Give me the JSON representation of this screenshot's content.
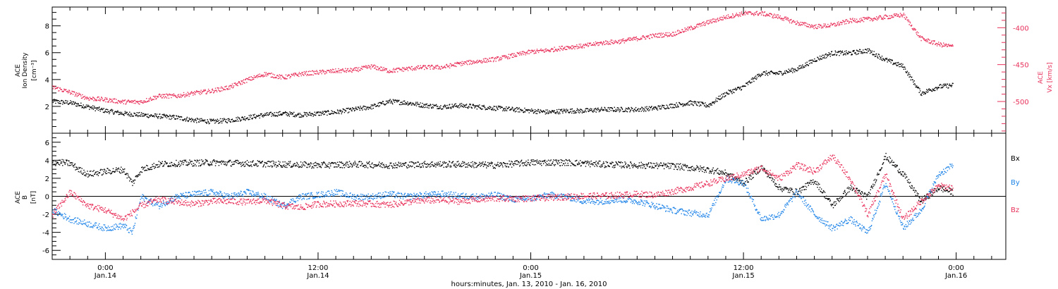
{
  "colors": {
    "black": "#000000",
    "pink": "#e8305a",
    "blue": "#1f84e8"
  },
  "xaxis": {
    "label": "hours:minutes, Jan. 13, 2010 - Jan. 16, 2010",
    "ticks": [
      {
        "hour": 0,
        "time": "0:00",
        "date": "Jan.14"
      },
      {
        "hour": 12,
        "time": "12:00",
        "date": "Jan.14"
      },
      {
        "hour": 24,
        "time": "0:00",
        "date": "Jan.15"
      },
      {
        "hour": 36,
        "time": "12:00",
        "date": "Jan.15"
      },
      {
        "hour": 48,
        "time": "0:00",
        "date": "Jan.16"
      }
    ]
  },
  "chart_data": [
    {
      "type": "scatter",
      "panel": "top",
      "ylabel_left": [
        "ACE",
        "Ion Density",
        "[cm⁻³]"
      ],
      "ylabel_right": [
        "ACE",
        "Vx [km/s]"
      ],
      "xrange_hours_from_jan14_0000": [
        -3.0,
        50.8
      ],
      "ylim_left": [
        0,
        9.4
      ],
      "yticks_left": [
        "2",
        "4",
        "6",
        "8"
      ],
      "ylim_right": [
        -543,
        -372
      ],
      "yticks_right": [
        "-400",
        "-450",
        "-500"
      ],
      "series": [
        {
          "axis": "left",
          "color": "black",
          "points": [
            [
              -3.0,
              2.4
            ],
            [
              -2,
              2.3
            ],
            [
              -1,
              2.0
            ],
            [
              0,
              1.7
            ],
            [
              1,
              1.5
            ],
            [
              2,
              1.4
            ],
            [
              3,
              1.3
            ],
            [
              4,
              1.2
            ],
            [
              5,
              1.0
            ],
            [
              6,
              0.9
            ],
            [
              7,
              1.0
            ],
            [
              8,
              1.2
            ],
            [
              9,
              1.4
            ],
            [
              10,
              1.5
            ],
            [
              11,
              1.4
            ],
            [
              12,
              1.5
            ],
            [
              13,
              1.6
            ],
            [
              14,
              1.8
            ],
            [
              15,
              2.0
            ],
            [
              16,
              2.4
            ],
            [
              17,
              2.3
            ],
            [
              18,
              2.1
            ],
            [
              19,
              2.0
            ],
            [
              20,
              2.1
            ],
            [
              21,
              2.0
            ],
            [
              22,
              1.9
            ],
            [
              23,
              1.8
            ],
            [
              24,
              1.7
            ],
            [
              25,
              1.6
            ],
            [
              26,
              1.7
            ],
            [
              27,
              1.7
            ],
            [
              28,
              1.8
            ],
            [
              29,
              1.8
            ],
            [
              30,
              1.8
            ],
            [
              31,
              1.9
            ],
            [
              32,
              2.1
            ],
            [
              33,
              2.3
            ],
            [
              34,
              2.1
            ],
            [
              35,
              3.0
            ],
            [
              36,
              3.5
            ],
            [
              37,
              4.5
            ],
            [
              38,
              4.5
            ],
            [
              39,
              4.8
            ],
            [
              40,
              5.5
            ],
            [
              41,
              6.0
            ],
            [
              42,
              6.0
            ],
            [
              43,
              6.2
            ],
            [
              44,
              5.5
            ],
            [
              45,
              5.0
            ],
            [
              46,
              3.0
            ],
            [
              47,
              3.5
            ],
            [
              47.8,
              3.6
            ]
          ]
        },
        {
          "axis": "right",
          "color": "pink",
          "points": [
            [
              -3.0,
              -480
            ],
            [
              -2,
              -487
            ],
            [
              -1,
              -495
            ],
            [
              0,
              -497
            ],
            [
              1,
              -500
            ],
            [
              2,
              -500
            ],
            [
              3,
              -492
            ],
            [
              4,
              -492
            ],
            [
              5,
              -488
            ],
            [
              6,
              -485
            ],
            [
              7,
              -480
            ],
            [
              8,
              -470
            ],
            [
              9,
              -462
            ],
            [
              10,
              -467
            ],
            [
              11,
              -462
            ],
            [
              12,
              -460
            ],
            [
              13,
              -458
            ],
            [
              14,
              -457
            ],
            [
              15,
              -452
            ],
            [
              16,
              -458
            ],
            [
              17,
              -455
            ],
            [
              18,
              -453
            ],
            [
              19,
              -453
            ],
            [
              20,
              -448
            ],
            [
              21,
              -445
            ],
            [
              22,
              -442
            ],
            [
              23,
              -437
            ],
            [
              24,
              -432
            ],
            [
              25,
              -430
            ],
            [
              26,
              -426
            ],
            [
              27,
              -424
            ],
            [
              28,
              -420
            ],
            [
              29,
              -418
            ],
            [
              30,
              -414
            ],
            [
              31,
              -410
            ],
            [
              32,
              -408
            ],
            [
              33,
              -400
            ],
            [
              34,
              -392
            ],
            [
              35,
              -385
            ],
            [
              36,
              -380
            ],
            [
              37,
              -380
            ],
            [
              38,
              -385
            ],
            [
              39,
              -393
            ],
            [
              40,
              -398
            ],
            [
              41,
              -396
            ],
            [
              42,
              -390
            ],
            [
              43,
              -388
            ],
            [
              44,
              -385
            ],
            [
              45,
              -382
            ],
            [
              46,
              -414
            ],
            [
              47,
              -422
            ],
            [
              47.8,
              -425
            ]
          ]
        }
      ]
    },
    {
      "type": "scatter",
      "panel": "bottom",
      "ylabel_left": [
        "ACE",
        "B",
        "[nT]"
      ],
      "xrange_hours_from_jan14_0000": [
        -3.0,
        50.8
      ],
      "ylim": [
        -7,
        7
      ],
      "yticks": [
        "-6",
        "-4",
        "-2",
        "0",
        "2",
        "4",
        "6"
      ],
      "zero_line": true,
      "legend": [
        "Bx",
        "By",
        "Bz"
      ],
      "legend_placement": "right",
      "series": [
        {
          "name": "Bx",
          "color": "black",
          "points": [
            [
              -3.0,
              3.8
            ],
            [
              -2.5,
              3.8
            ],
            [
              -2,
              3.7
            ],
            [
              -1.5,
              3.0
            ],
            [
              -1,
              2.5
            ],
            [
              0,
              2.8
            ],
            [
              1,
              3.0
            ],
            [
              1.5,
              1.5
            ],
            [
              2,
              3.0
            ],
            [
              3,
              3.6
            ],
            [
              4,
              3.7
            ],
            [
              6,
              3.8
            ],
            [
              8,
              3.7
            ],
            [
              10,
              3.6
            ],
            [
              12,
              3.5
            ],
            [
              14,
              3.6
            ],
            [
              16,
              3.5
            ],
            [
              18,
              3.6
            ],
            [
              20,
              3.6
            ],
            [
              22,
              3.5
            ],
            [
              24,
              3.8
            ],
            [
              26,
              3.8
            ],
            [
              28,
              3.6
            ],
            [
              30,
              3.5
            ],
            [
              32,
              3.4
            ],
            [
              34,
              3.0
            ],
            [
              35,
              2.6
            ],
            [
              36,
              1.5
            ],
            [
              37,
              3.3
            ],
            [
              38,
              1.0
            ],
            [
              39,
              0.5
            ],
            [
              40,
              1.8
            ],
            [
              41,
              -1.0
            ],
            [
              42,
              1.0
            ],
            [
              43,
              0.0
            ],
            [
              44,
              4.5
            ],
            [
              45,
              2.5
            ],
            [
              46,
              -0.5
            ],
            [
              47,
              1.0
            ],
            [
              47.8,
              0.5
            ]
          ]
        },
        {
          "name": "By",
          "color": "blue",
          "points": [
            [
              -3.0,
              -1.5
            ],
            [
              -2,
              -2.5
            ],
            [
              -1,
              -3.0
            ],
            [
              0,
              -3.5
            ],
            [
              1,
              -3.2
            ],
            [
              1.5,
              -4.0
            ],
            [
              2,
              0.0
            ],
            [
              3,
              -1.0
            ],
            [
              4,
              0.0
            ],
            [
              5,
              0.3
            ],
            [
              6,
              0.5
            ],
            [
              7,
              0.0
            ],
            [
              8,
              0.5
            ],
            [
              9,
              0.0
            ],
            [
              10,
              -1.0
            ],
            [
              11,
              0.0
            ],
            [
              12,
              0.2
            ],
            [
              13,
              0.5
            ],
            [
              14,
              0.0
            ],
            [
              15,
              0.0
            ],
            [
              16,
              0.3
            ],
            [
              17,
              0.0
            ],
            [
              18,
              0.2
            ],
            [
              19,
              0.3
            ],
            [
              20,
              0.1
            ],
            [
              21,
              0.0
            ],
            [
              22,
              0.2
            ],
            [
              23,
              -0.3
            ],
            [
              24,
              -0.2
            ],
            [
              25,
              0.2
            ],
            [
              26,
              0.0
            ],
            [
              27,
              -0.5
            ],
            [
              28,
              -0.5
            ],
            [
              29,
              -0.3
            ],
            [
              30,
              -0.5
            ],
            [
              31,
              -1.0
            ],
            [
              32,
              -1.5
            ],
            [
              33,
              -1.8
            ],
            [
              34,
              -2.0
            ],
            [
              35,
              2.0
            ],
            [
              36,
              1.5
            ],
            [
              37,
              -2.5
            ],
            [
              38,
              -2.0
            ],
            [
              39,
              0.5
            ],
            [
              40,
              -2.0
            ],
            [
              41,
              -3.5
            ],
            [
              42,
              -2.5
            ],
            [
              43,
              -4.0
            ],
            [
              44,
              1.5
            ],
            [
              45,
              -3.5
            ],
            [
              46,
              -1.5
            ],
            [
              47,
              2.5
            ],
            [
              47.8,
              3.5
            ]
          ]
        },
        {
          "name": "Bz",
          "color": "pink",
          "points": [
            [
              -3.0,
              -2.0
            ],
            [
              -2,
              0.5
            ],
            [
              -1,
              -1.0
            ],
            [
              0,
              -1.5
            ],
            [
              1,
              -2.5
            ],
            [
              2,
              -1.0
            ],
            [
              3,
              -0.3
            ],
            [
              4,
              -0.6
            ],
            [
              5,
              -0.8
            ],
            [
              6,
              -0.5
            ],
            [
              7,
              -0.5
            ],
            [
              8,
              -0.6
            ],
            [
              9,
              -0.4
            ],
            [
              10,
              -1.0
            ],
            [
              11,
              -1.2
            ],
            [
              12,
              -0.8
            ],
            [
              13,
              -0.8
            ],
            [
              14,
              -0.7
            ],
            [
              15,
              -0.8
            ],
            [
              16,
              -0.9
            ],
            [
              17,
              -0.6
            ],
            [
              18,
              -0.4
            ],
            [
              19,
              -0.4
            ],
            [
              20,
              -0.5
            ],
            [
              21,
              -0.3
            ],
            [
              22,
              -0.2
            ],
            [
              23,
              -0.2
            ],
            [
              24,
              -0.2
            ],
            [
              25,
              -0.1
            ],
            [
              26,
              0.0
            ],
            [
              27,
              0.1
            ],
            [
              28,
              0.1
            ],
            [
              29,
              0.2
            ],
            [
              30,
              0.3
            ],
            [
              31,
              0.2
            ],
            [
              32,
              0.6
            ],
            [
              33,
              1.0
            ],
            [
              34,
              1.5
            ],
            [
              35,
              2.0
            ],
            [
              36,
              2.5
            ],
            [
              37,
              3.2
            ],
            [
              38,
              2.0
            ],
            [
              39,
              3.5
            ],
            [
              40,
              2.8
            ],
            [
              41,
              4.5
            ],
            [
              42,
              2.0
            ],
            [
              43,
              -2.0
            ],
            [
              44,
              2.5
            ],
            [
              45,
              -2.5
            ],
            [
              46,
              -0.5
            ],
            [
              47,
              1.2
            ],
            [
              47.8,
              1.0
            ]
          ]
        }
      ]
    }
  ]
}
